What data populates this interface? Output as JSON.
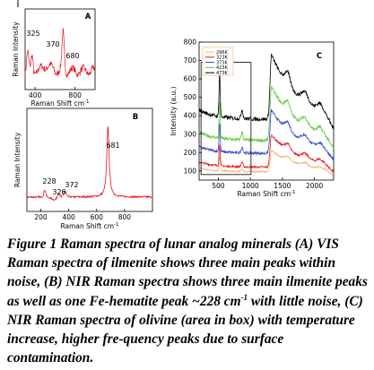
{
  "chart_data": [
    {
      "panel_letter": "A",
      "type": "line",
      "xlabel": "Raman Shift cm",
      "ylabel": "Raman Intensity",
      "xlim": [
        300,
        1000
      ],
      "xticks": [
        400,
        800
      ],
      "line_color": "#e8141c",
      "peaks": [
        {
          "x": 325,
          "label": "325"
        },
        {
          "x": 370,
          "label": "370"
        },
        {
          "x": 680,
          "label": "680"
        }
      ]
    },
    {
      "panel_letter": "B",
      "type": "line",
      "xlabel": "Raman Shift cm",
      "ylabel": "Raman Intensity",
      "xlim": [
        100,
        1000
      ],
      "xticks": [
        200,
        400,
        600,
        800
      ],
      "line_color": "#e8141c",
      "peaks": [
        {
          "x": 228,
          "label": "228"
        },
        {
          "x": 326,
          "label": "326"
        },
        {
          "x": 372,
          "label": "372"
        },
        {
          "x": 681,
          "label": "681"
        }
      ]
    },
    {
      "panel_letter": "C",
      "type": "line",
      "xlabel": "Raman Shift cm",
      "ylabel": "Intensity (a.u.)",
      "xlim": [
        200,
        2300
      ],
      "ylim": [
        50,
        800
      ],
      "xticks": [
        500,
        1000,
        1500,
        2000
      ],
      "yticks": [
        100,
        200,
        300,
        400,
        500,
        600,
        700,
        800
      ],
      "legend_position": "top-left",
      "series": [
        {
          "name": "296K",
          "color": "#f7b06a",
          "base": 95
        },
        {
          "name": "323K",
          "color": "#e8141c",
          "base": 120
        },
        {
          "name": "373K",
          "color": "#2b44d0",
          "base": 195
        },
        {
          "name": "423K",
          "color": "#5fc93a",
          "base": 265
        },
        {
          "name": "473K",
          "color": "#000000",
          "base": 380
        }
      ],
      "box_region": {
        "x_from": 230,
        "x_to": 1010,
        "y_from": 80,
        "y_to": 690
      }
    }
  ],
  "caption": {
    "label": "Figure 1",
    "text": " Raman spectra of lunar analog minerals (A) VIS Raman spectra of ilmenite shows three main peaks within noise, (B) NIR Raman spectra shows three main ilmenite peaks as well as one Fe-hematite peak ~228 cm",
    "sup": "-1",
    "tail": " with little noise, (C) NIR Raman spectra of olivine (area in box) with temperature increase, higher fre-quency peaks due to surface contamination."
  },
  "exponent_label": "-1"
}
